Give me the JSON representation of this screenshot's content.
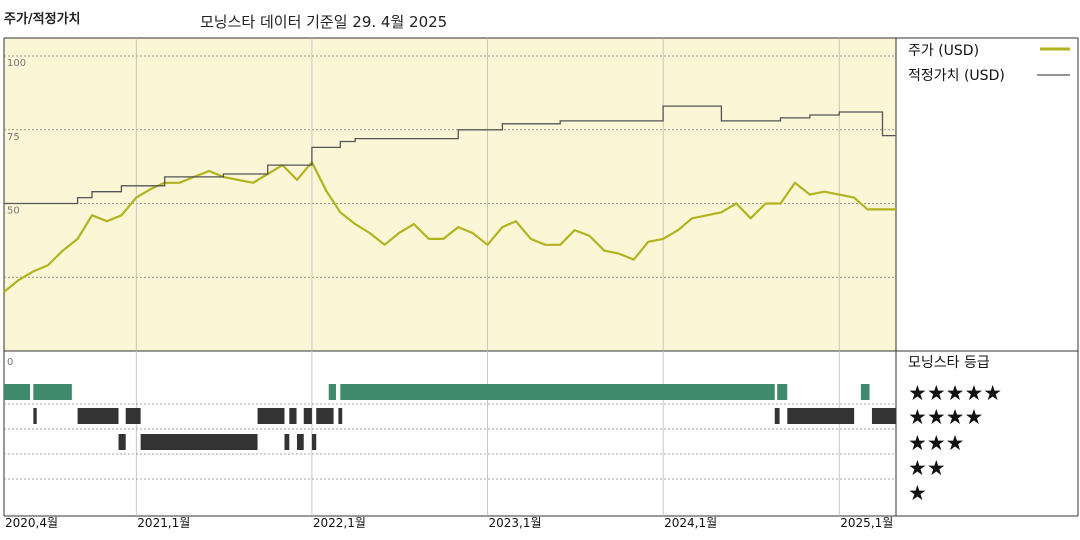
{
  "header": {
    "title": "주가/적정가치",
    "subtitle": "모닝스타 데이터 기준일 29. 4월 2025"
  },
  "legend": {
    "price_label": "주가 (USD)",
    "fair_value_label": "적정가치 (USD)",
    "rating_title": "모닝스타 등급",
    "stars": [
      "★★★★★",
      "★★★★",
      "★★★",
      "★★",
      "★"
    ]
  },
  "colors": {
    "plot_bg": "#faf6d6",
    "price": "#b3b21f",
    "fair_value": "#555555",
    "five_star": "#3f8a6c",
    "four_star": "#333333",
    "three_star": "#333333"
  },
  "chart_data": [
    {
      "type": "line",
      "x_range": [
        "2020-04-01",
        "2025-04-29"
      ],
      "ylim": [
        0,
        100
      ],
      "y_ticks": [
        "100",
        "75",
        "50",
        "0"
      ],
      "x_tick_labels": [
        {
          "date": "2020-04-01",
          "label": "2020,4월"
        },
        {
          "date": "2021-01-01",
          "label": "2021,1월"
        },
        {
          "date": "2022-01-01",
          "label": "2022,1월"
        },
        {
          "date": "2023-01-01",
          "label": "2023,1월"
        },
        {
          "date": "2024-01-01",
          "label": "2024,1월"
        },
        {
          "date": "2025-01-01",
          "label": "2025,1월"
        }
      ],
      "grid": true,
      "legend_position": "right",
      "series": [
        {
          "name": "주가 (USD)",
          "style": "line",
          "points": [
            [
              "2020-04-01",
              20
            ],
            [
              "2020-05-01",
              24
            ],
            [
              "2020-06-01",
              27
            ],
            [
              "2020-07-01",
              29
            ],
            [
              "2020-08-01",
              34
            ],
            [
              "2020-09-01",
              38
            ],
            [
              "2020-10-01",
              46
            ],
            [
              "2020-11-01",
              44
            ],
            [
              "2020-12-01",
              46
            ],
            [
              "2021-01-01",
              52
            ],
            [
              "2021-02-01",
              55
            ],
            [
              "2021-03-01",
              57
            ],
            [
              "2021-04-01",
              57
            ],
            [
              "2021-05-01",
              59
            ],
            [
              "2021-06-01",
              61
            ],
            [
              "2021-07-01",
              59
            ],
            [
              "2021-08-01",
              58
            ],
            [
              "2021-09-01",
              57
            ],
            [
              "2021-10-01",
              60
            ],
            [
              "2021-11-01",
              63
            ],
            [
              "2021-12-01",
              58
            ],
            [
              "2022-01-01",
              64
            ],
            [
              "2022-02-01",
              54
            ],
            [
              "2022-03-01",
              47
            ],
            [
              "2022-04-01",
              43
            ],
            [
              "2022-05-01",
              40
            ],
            [
              "2022-06-01",
              36
            ],
            [
              "2022-07-01",
              40
            ],
            [
              "2022-08-01",
              43
            ],
            [
              "2022-09-01",
              38
            ],
            [
              "2022-10-01",
              38
            ],
            [
              "2022-11-01",
              42
            ],
            [
              "2022-12-01",
              40
            ],
            [
              "2023-01-01",
              36
            ],
            [
              "2023-02-01",
              42
            ],
            [
              "2023-03-01",
              44
            ],
            [
              "2023-04-01",
              38
            ],
            [
              "2023-05-01",
              36
            ],
            [
              "2023-06-01",
              36
            ],
            [
              "2023-07-01",
              41
            ],
            [
              "2023-08-01",
              39
            ],
            [
              "2023-09-01",
              34
            ],
            [
              "2023-10-01",
              33
            ],
            [
              "2023-11-01",
              31
            ],
            [
              "2023-12-01",
              37
            ],
            [
              "2024-01-01",
              38
            ],
            [
              "2024-02-01",
              41
            ],
            [
              "2024-03-01",
              45
            ],
            [
              "2024-04-01",
              46
            ],
            [
              "2024-05-01",
              47
            ],
            [
              "2024-06-01",
              50
            ],
            [
              "2024-07-01",
              45
            ],
            [
              "2024-08-01",
              50
            ],
            [
              "2024-09-01",
              50
            ],
            [
              "2024-10-01",
              57
            ],
            [
              "2024-11-01",
              53
            ],
            [
              "2024-12-01",
              54
            ],
            [
              "2025-01-01",
              53
            ],
            [
              "2025-02-01",
              52
            ],
            [
              "2025-03-01",
              48
            ],
            [
              "2025-04-29",
              48
            ]
          ]
        },
        {
          "name": "적정가치 (USD)",
          "style": "step",
          "points": [
            [
              "2020-04-01",
              50
            ],
            [
              "2020-09-01",
              52
            ],
            [
              "2020-10-01",
              54
            ],
            [
              "2020-12-01",
              56
            ],
            [
              "2021-03-01",
              59
            ],
            [
              "2021-07-01",
              60
            ],
            [
              "2021-10-01",
              63
            ],
            [
              "2022-01-01",
              69
            ],
            [
              "2022-03-01",
              71
            ],
            [
              "2022-04-01",
              72
            ],
            [
              "2022-11-01",
              75
            ],
            [
              "2023-02-01",
              77
            ],
            [
              "2023-06-01",
              78
            ],
            [
              "2024-01-01",
              83
            ],
            [
              "2024-05-01",
              78
            ],
            [
              "2024-09-01",
              79
            ],
            [
              "2024-11-01",
              80
            ],
            [
              "2025-01-01",
              81
            ],
            [
              "2025-03-01",
              81
            ],
            [
              "2025-04-01",
              73
            ],
            [
              "2025-04-29",
              73
            ]
          ]
        }
      ]
    },
    {
      "type": "heatmap",
      "title": "모닝스타 등급",
      "rows": [
        "★★★★★",
        "★★★★",
        "★★★",
        "★★",
        "★"
      ],
      "ratings": [
        {
          "stars": 5,
          "periods": [
            [
              "2020-04-01",
              "2020-05-25"
            ],
            [
              "2020-06-01",
              "2020-08-20"
            ],
            [
              "2022-02-05",
              "2022-02-20"
            ],
            [
              "2022-03-01",
              "2024-08-20"
            ],
            [
              "2024-08-25",
              "2024-09-15"
            ],
            [
              "2025-02-15",
              "2025-03-05"
            ]
          ]
        },
        {
          "stars": 4,
          "periods": [
            [
              "2020-06-01",
              "2020-06-08"
            ],
            [
              "2020-09-01",
              "2020-11-25"
            ],
            [
              "2020-12-10",
              "2021-01-10"
            ],
            [
              "2021-09-10",
              "2021-11-05"
            ],
            [
              "2021-11-15",
              "2021-11-30"
            ],
            [
              "2021-12-15",
              "2022-01-01"
            ],
            [
              "2022-01-10",
              "2022-02-15"
            ],
            [
              "2022-02-25",
              "2022-03-05"
            ],
            [
              "2024-08-20",
              "2024-08-30"
            ],
            [
              "2024-09-15",
              "2025-02-01"
            ],
            [
              "2025-03-10",
              "2025-04-29"
            ]
          ]
        },
        {
          "stars": 3,
          "periods": [
            [
              "2020-11-25",
              "2020-12-10"
            ],
            [
              "2021-01-10",
              "2021-09-10"
            ],
            [
              "2021-11-05",
              "2021-11-15"
            ],
            [
              "2021-12-01",
              "2021-12-15"
            ],
            [
              "2022-01-01",
              "2022-01-10"
            ]
          ]
        }
      ]
    }
  ]
}
